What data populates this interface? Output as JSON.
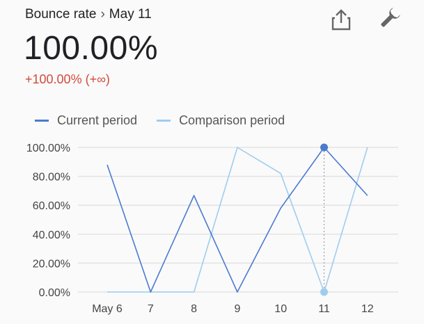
{
  "header": {
    "metric": "Bounce rate",
    "separator": "›",
    "date": "May 11",
    "value": "100.00%",
    "change": "+100.00% (+∞)"
  },
  "actions": {
    "share_icon": "share-icon",
    "settings_icon": "wrench-icon"
  },
  "colors": {
    "current": "#4a7bd0",
    "comparison": "#9ecdf0",
    "negative": "#d3493c",
    "grid": "#e3e3e3",
    "highlight_line": "#9e9e9e"
  },
  "chart_data": {
    "type": "line",
    "categories": [
      "May 6",
      "7",
      "8",
      "9",
      "10",
      "11",
      "12"
    ],
    "y_ticks": [
      "100.00%",
      "80.00%",
      "60.00%",
      "40.00%",
      "20.00%",
      "0.00%"
    ],
    "ylim": [
      0,
      100
    ],
    "grid": true,
    "legend_position": "top-left",
    "highlight_index": 5,
    "series": [
      {
        "name": "Current period",
        "values": [
          88,
          0,
          66.7,
          0,
          58,
          100,
          66.7
        ]
      },
      {
        "name": "Comparison period",
        "values": [
          0,
          0,
          0,
          100,
          82,
          0,
          100
        ]
      }
    ]
  }
}
